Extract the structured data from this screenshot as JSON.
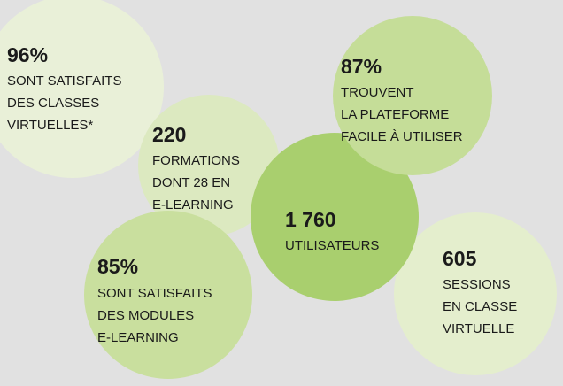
{
  "stats": [
    {
      "value": "96%",
      "lines": [
        "SONT SATISFAITS",
        "DES CLASSES",
        "VIRTUELLES*"
      ]
    },
    {
      "value": "220",
      "lines": [
        "FORMATIONS",
        "DONT 28 EN",
        "E-LEARNING"
      ]
    },
    {
      "value": "85%",
      "lines": [
        "SONT SATISFAITS",
        "DES MODULES",
        "E-LEARNING"
      ]
    },
    {
      "value": "605",
      "lines": [
        "SESSIONS",
        "EN CLASSE",
        "VIRTUELLE"
      ]
    },
    {
      "value": "1 760",
      "lines": [
        "UTILISATEURS"
      ]
    },
    {
      "value": "87%",
      "lines": [
        "TROUVENT",
        "LA PLATEFORME",
        "FACILE À UTILISER"
      ]
    }
  ]
}
